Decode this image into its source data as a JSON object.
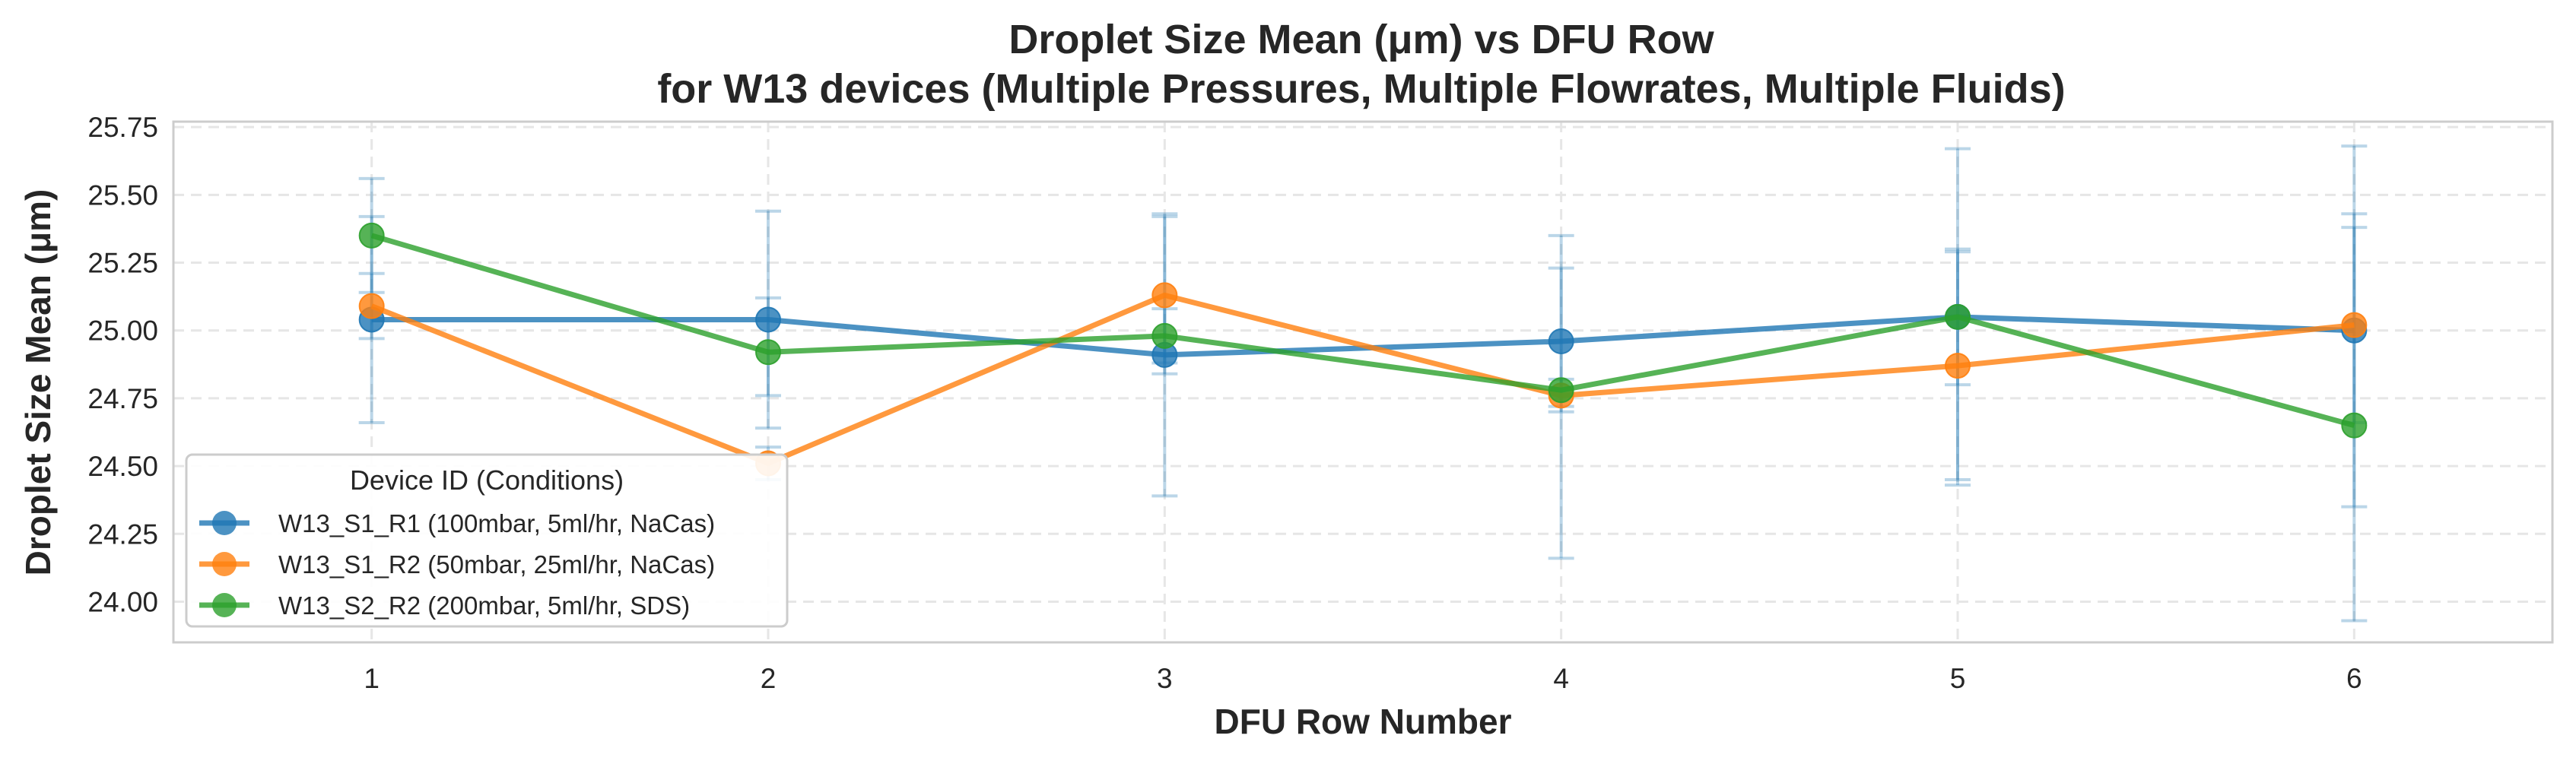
{
  "chart_data": {
    "type": "line",
    "title_line1": "Droplet Size Mean (μm) vs DFU Row",
    "title_line2": "for W13 devices (Multiple Pressures, Multiple Flowrates, Multiple Fluids)",
    "xlabel": "DFU Row Number",
    "ylabel": "Droplet Size Mean (μm)",
    "x": [
      1,
      2,
      3,
      4,
      5,
      6
    ],
    "x_tick_labels": [
      "1",
      "2",
      "3",
      "4",
      "5",
      "6"
    ],
    "xlim": [
      0.5,
      6.5
    ],
    "ylim": [
      23.85,
      25.77
    ],
    "y_ticks": [
      24.0,
      24.25,
      24.5,
      24.75,
      25.0,
      25.25,
      25.5,
      25.75
    ],
    "y_tick_labels": [
      "24.00",
      "24.25",
      "24.50",
      "24.75",
      "25.00",
      "25.25",
      "25.50",
      "25.75"
    ],
    "grid": true,
    "legend_title": "Device ID (Conditions)",
    "legend_position": "lower-left",
    "series": [
      {
        "name": "W13_S1_R1 (100mbar, 5ml/hr, NaCas)",
        "color": "#1f77b4",
        "values": [
          25.04,
          25.04,
          24.91,
          24.96,
          25.05,
          25.0
        ],
        "err_low": [
          24.66,
          24.64,
          24.39,
          24.16,
          24.43,
          23.93
        ],
        "err_high": [
          25.42,
          25.44,
          25.43,
          25.35,
          25.67,
          25.68
        ]
      },
      {
        "name": "W13_S1_R2 (50mbar, 25ml/hr, NaCas)",
        "color": "#ff7f0e",
        "values": [
          25.09,
          24.51,
          25.13,
          24.76,
          24.87,
          25.02
        ],
        "err_low": [
          24.97,
          24.45,
          24.84,
          24.7,
          24.45,
          24.66
        ],
        "err_high": [
          25.21,
          24.57,
          25.42,
          24.82,
          25.29,
          25.38
        ]
      },
      {
        "name": "W13_S2_R2 (200mbar, 5ml/hr, SDS)",
        "color": "#2ca02c",
        "values": [
          25.35,
          24.92,
          24.98,
          24.78,
          25.05,
          24.65
        ],
        "err_low": [
          25.14,
          24.76,
          24.88,
          24.72,
          24.8,
          24.35
        ],
        "err_high": [
          25.56,
          25.12,
          25.08,
          25.23,
          25.3,
          25.43
        ]
      }
    ]
  }
}
